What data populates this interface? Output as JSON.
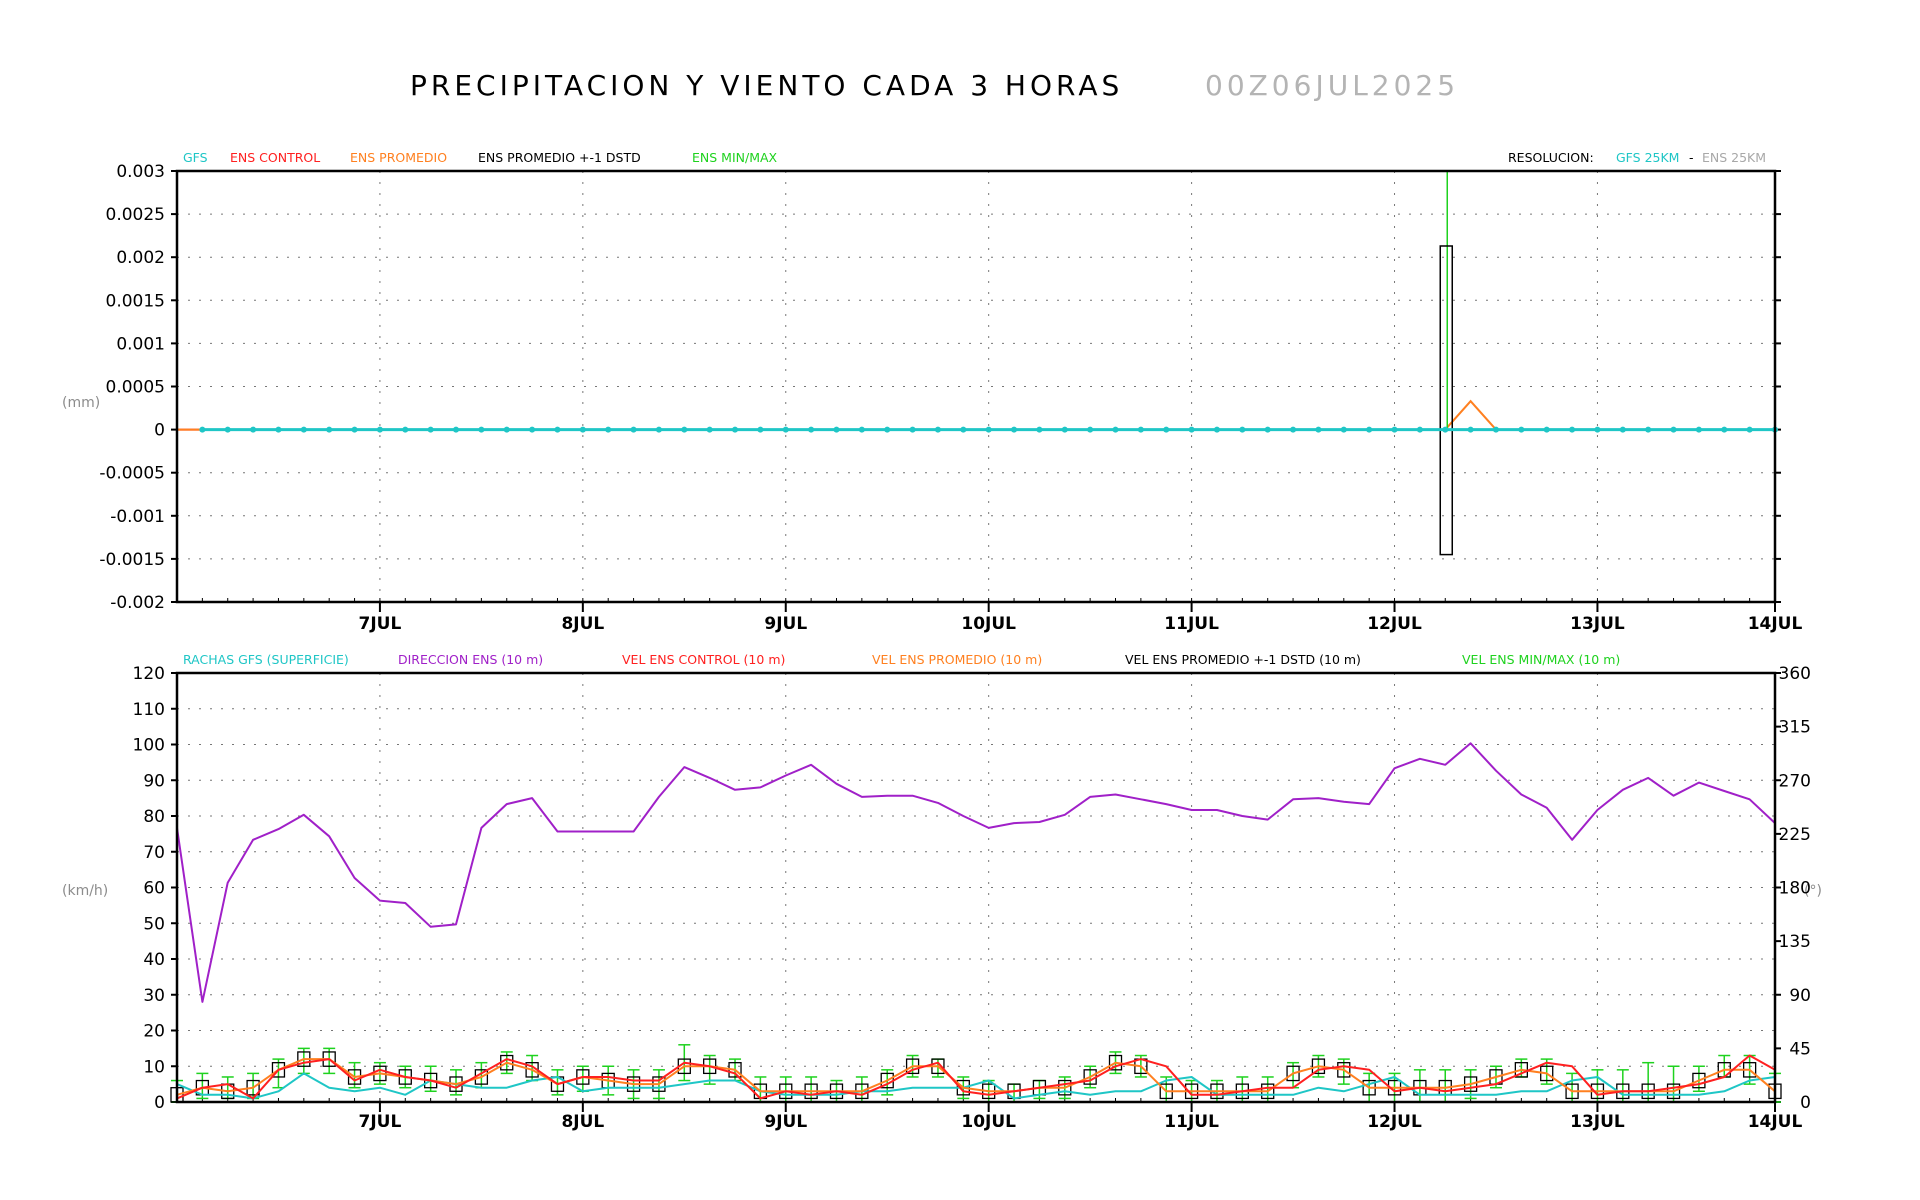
{
  "title": {
    "main": "PRECIPITACION Y VIENTO CADA 3 HORAS",
    "run": "00Z06JUL2025"
  },
  "colors": {
    "gfs": "#1fc6c6",
    "control": "#ff2020",
    "promedio": "#ff8020",
    "std": "#000000",
    "minmax": "#1ed21e",
    "direccion": "#a020c8",
    "grey": "#a8a8a8"
  },
  "top_legend": {
    "gfs": "GFS",
    "control": "ENS CONTROL",
    "promedio": "ENS PROMEDIO",
    "std": "ENS PROMEDIO +-1 DSTD",
    "minmax": "ENS MIN/MAX",
    "res_label": "RESOLUCION:",
    "res_gfs": "GFS 25KM",
    "res_sep": "-",
    "res_ens": "ENS 25KM"
  },
  "bottom_legend": {
    "rachas": "RACHAS GFS (SUPERFICIE)",
    "direccion": "DIRECCION ENS (10 m)",
    "control": "VEL ENS CONTROL (10 m)",
    "promedio": "VEL ENS PROMEDIO (10 m)",
    "std": "VEL ENS PROMEDIO +-1 DSTD (10 m)",
    "minmax": "VEL ENS MIN/MAX (10 m)"
  },
  "chart_data": [
    {
      "type": "line",
      "title": "PRECIPITACION Y VIENTO CADA 3 HORAS",
      "ylabel": "(mm)",
      "ylim": [
        -0.002,
        0.003
      ],
      "yticks": [
        0.003,
        0.0025,
        0.002,
        0.0015,
        0.001,
        0.0005,
        0,
        -0.0005,
        -0.001,
        -0.0015,
        -0.002
      ],
      "ytick_labels": [
        "0.003",
        "0.0025",
        "0.002",
        "0.0015",
        "0.001",
        "0.0005",
        "0",
        "-0.0005",
        "-0.001",
        "-0.0015",
        "-0.002"
      ],
      "x_range_hours": [
        0,
        189
      ],
      "x_ticks": [
        {
          "label": "7JUL",
          "hour": 24
        },
        {
          "label": "8JUL",
          "hour": 48
        },
        {
          "label": "9JUL",
          "hour": 72
        },
        {
          "label": "10JUL",
          "hour": 96
        },
        {
          "label": "11JUL",
          "hour": 120
        },
        {
          "label": "12JUL",
          "hour": 144
        },
        {
          "label": "13JUL",
          "hour": 168
        },
        {
          "label": "14JUL",
          "hour": 189
        }
      ],
      "grid": true,
      "legend_position": "top",
      "series": [
        {
          "name": "GFS",
          "hours": [
            3,
            189,
            3
          ],
          "values": [
            0
          ]
        },
        {
          "name": "ENS CONTROL",
          "hours": [
            0,
            189,
            3
          ],
          "values": [
            0
          ]
        },
        {
          "name": "ENS PROMEDIO",
          "hours": [
            0,
            189,
            3
          ],
          "values": [
            0
          ],
          "nonzero": [
            [
              150,
              0
            ],
            [
              153,
              0.00033
            ],
            [
              156,
              0
            ]
          ]
        },
        {
          "name": "ENS PROMEDIO +-1 DSTD",
          "box": {
            "hour": 150,
            "low": -0.00145,
            "high": 0.00213
          }
        },
        {
          "name": "ENS MIN/MAX",
          "whisker": {
            "hour": 150,
            "low": 0,
            "high": 0.003
          }
        }
      ]
    },
    {
      "type": "line",
      "ylabel": "(km/h)",
      "ylabel_right": "(°)",
      "ylim": [
        0,
        120
      ],
      "ylim_right": [
        0,
        360
      ],
      "yticks": [
        0,
        10,
        20,
        30,
        40,
        50,
        60,
        70,
        80,
        90,
        100,
        110,
        120
      ],
      "yticks_right": [
        0,
        45,
        90,
        135,
        180,
        225,
        270,
        315,
        360
      ],
      "x_range_hours": [
        0,
        189
      ],
      "x_ticks": [
        {
          "label": "7JUL",
          "hour": 24
        },
        {
          "label": "8JUL",
          "hour": 48
        },
        {
          "label": "9JUL",
          "hour": 72
        },
        {
          "label": "10JUL",
          "hour": 96
        },
        {
          "label": "11JUL",
          "hour": 120
        },
        {
          "label": "12JUL",
          "hour": 144
        },
        {
          "label": "13JUL",
          "hour": 168
        },
        {
          "label": "14JUL",
          "hour": 189
        }
      ],
      "grid": true,
      "legend_position": "top",
      "hours": [
        0,
        3,
        6,
        9,
        12,
        15,
        18,
        21,
        24,
        27,
        30,
        33,
        36,
        39,
        42,
        45,
        48,
        51,
        54,
        57,
        60,
        63,
        66,
        69,
        72,
        75,
        78,
        81,
        84,
        87,
        90,
        93,
        96,
        99,
        102,
        105,
        108,
        111,
        114,
        117,
        120,
        123,
        126,
        129,
        132,
        135,
        138,
        141,
        144,
        147,
        150,
        153,
        156,
        159,
        162,
        165,
        168,
        171,
        174,
        177,
        180,
        183,
        186,
        189
      ],
      "series": [
        {
          "name": "RACHAS GFS (SUPERFICIE)",
          "axis": "left",
          "values": [
            5,
            2,
            2,
            1,
            3,
            8,
            4,
            3,
            4,
            2,
            6,
            5,
            4,
            4,
            6,
            7,
            3,
            4,
            4,
            4,
            5,
            6,
            6,
            3,
            2,
            2,
            2,
            3,
            3,
            4,
            4,
            4,
            6,
            1,
            2,
            3,
            2,
            3,
            3,
            6,
            7,
            2,
            2,
            2,
            2,
            4,
            3,
            5,
            7,
            2,
            2,
            2,
            2,
            3,
            3,
            6,
            7,
            2,
            2,
            2,
            2,
            3,
            6,
            7
          ]
        },
        {
          "name": "DIRECCION ENS (10 m)",
          "axis": "right",
          "values": [
            230,
            84,
            184,
            220,
            229,
            241,
            223,
            188,
            169,
            167,
            147,
            149,
            230,
            250,
            255,
            227,
            227,
            227,
            227,
            256,
            281,
            272,
            262,
            264,
            274,
            283,
            267,
            256,
            257,
            257,
            251,
            240,
            230,
            234,
            235,
            241,
            256,
            258,
            254,
            250,
            245,
            245,
            240,
            237,
            254,
            255,
            252,
            250,
            280,
            288,
            283,
            301,
            278,
            258,
            247,
            220,
            245,
            262,
            272,
            257,
            268,
            261,
            254,
            234
          ]
        },
        {
          "name": "VEL ENS CONTROL (10 m)",
          "axis": "left",
          "values": [
            1,
            4,
            5,
            1,
            9,
            11,
            12,
            6,
            9,
            7,
            6,
            4,
            8,
            12,
            10,
            5,
            7,
            7,
            6,
            6,
            11,
            10,
            8,
            1,
            3,
            2,
            3,
            2,
            5,
            9,
            11,
            3,
            2,
            3,
            4,
            5,
            6,
            10,
            12,
            10,
            2,
            2,
            3,
            4,
            4,
            9,
            10,
            9,
            3,
            4,
            3,
            4,
            5,
            8,
            11,
            10,
            2,
            3,
            3,
            4,
            5,
            7,
            13,
            9
          ]
        },
        {
          "name": "VEL ENS PROMEDIO (10 m)",
          "axis": "left",
          "values": [
            2,
            4,
            3,
            4,
            9,
            12,
            12,
            7,
            8,
            7,
            6,
            5,
            7,
            11,
            9,
            5,
            7,
            6,
            5,
            5,
            10,
            10,
            9,
            3,
            3,
            3,
            3,
            3,
            6,
            10,
            10,
            4,
            3,
            3,
            4,
            4,
            7,
            11,
            10,
            3,
            3,
            3,
            3,
            3,
            8,
            10,
            9,
            4,
            4,
            4,
            4,
            5,
            7,
            9,
            8,
            3,
            3,
            3,
            3,
            3,
            6,
            9,
            9,
            3
          ]
        },
        {
          "name": "VEL ENS PROMEDIO +-1 DSTD (10 m)",
          "axis": "left",
          "kind": "box",
          "box_halfwidth_kmh": 2
        },
        {
          "name": "VEL ENS MIN/MAX (10 m)",
          "axis": "left",
          "kind": "whisker",
          "min": [
            0,
            1,
            1,
            1,
            4,
            8,
            8,
            4,
            5,
            4,
            3,
            2,
            4,
            8,
            6,
            2,
            3,
            2,
            1,
            1,
            6,
            5,
            6,
            0,
            0,
            0,
            0,
            0,
            2,
            7,
            7,
            1,
            0,
            0,
            1,
            1,
            4,
            8,
            7,
            0,
            0,
            0,
            0,
            0,
            4,
            7,
            5,
            0,
            0,
            0,
            0,
            1,
            4,
            7,
            5,
            0,
            0,
            0,
            0,
            0,
            3,
            7,
            5,
            0
          ],
          "max": [
            6,
            8,
            7,
            8,
            12,
            15,
            15,
            11,
            11,
            10,
            10,
            9,
            11,
            14,
            13,
            9,
            10,
            10,
            9,
            9,
            16,
            13,
            12,
            7,
            7,
            7,
            6,
            7,
            9,
            13,
            12,
            7,
            6,
            5,
            6,
            7,
            10,
            14,
            13,
            7,
            6,
            6,
            7,
            7,
            11,
            13,
            12,
            8,
            8,
            9,
            9,
            9,
            10,
            12,
            12,
            8,
            9,
            9,
            11,
            10,
            10,
            13,
            13,
            8
          ]
        }
      ]
    }
  ]
}
